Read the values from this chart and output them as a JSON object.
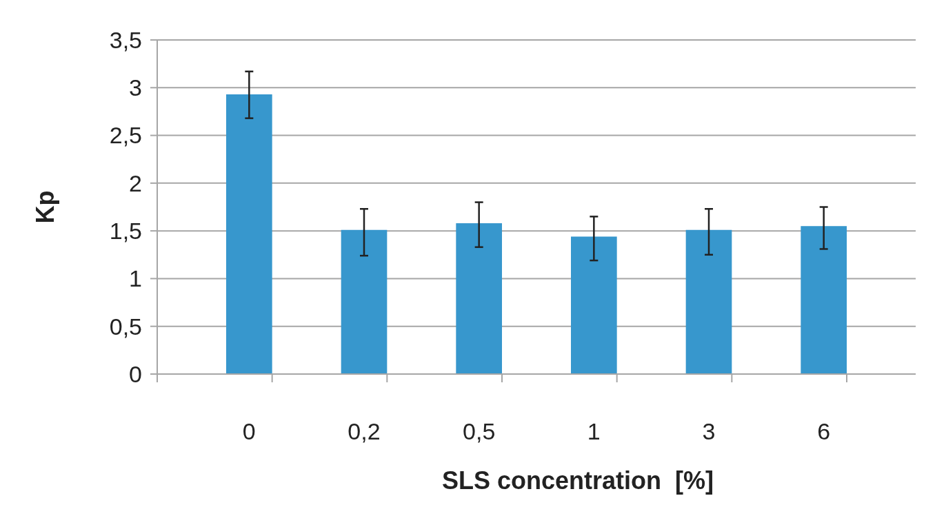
{
  "chart_data": {
    "type": "bar",
    "xlabel": "SLS concentration  [%]",
    "ylabel": "Kp",
    "categories": [
      "0",
      "0,2",
      "0,5",
      "1",
      "3",
      "6"
    ],
    "values": [
      2.93,
      1.51,
      1.58,
      1.44,
      1.51,
      1.55
    ],
    "errors": [
      [
        2.68,
        3.17
      ],
      [
        1.24,
        1.73
      ],
      [
        1.33,
        1.8
      ],
      [
        1.19,
        1.65
      ],
      [
        1.25,
        1.73
      ],
      [
        1.31,
        1.75
      ]
    ],
    "color": "#3797cd",
    "ylim": [
      0,
      3.5
    ],
    "yticks": [
      0,
      {
        "value": 0.5,
        "label": "0,5"
      },
      1,
      {
        "value": 1.5,
        "label": "1,5"
      },
      2,
      {
        "value": 2.5,
        "label": "2,5"
      },
      3,
      {
        "value": 3.5,
        "label": "3,5"
      }
    ],
    "grid": "y"
  }
}
